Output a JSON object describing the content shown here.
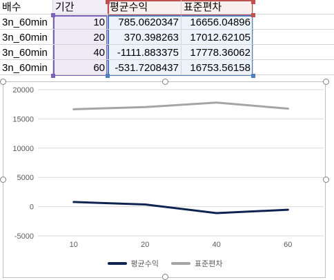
{
  "table": {
    "headers": [
      "배수",
      "기간",
      "평균수익",
      "표준편차"
    ],
    "rows": [
      [
        "3n_60min",
        "10",
        "785.0620347",
        "16656.04896"
      ],
      [
        "3n_60min",
        "20",
        "370.398263",
        "17012.62105"
      ],
      [
        "3n_60min",
        "40",
        "-1111.883375",
        "17778.36062"
      ],
      [
        "3n_60min",
        "60",
        "-531.7208437",
        "16753.56158"
      ]
    ]
  },
  "colors": {
    "avg_return": "#0e2350",
    "std_dev": "#a5a5a5",
    "range_purple": "#7a61b8",
    "range_red": "#c0504d",
    "range_blue": "#4f7fc0"
  },
  "chart_data": {
    "type": "line",
    "categories": [
      "10",
      "20",
      "40",
      "60"
    ],
    "series": [
      {
        "name": "평균수익",
        "values": [
          785.0620347,
          370.398263,
          -1111.883375,
          -531.7208437
        ]
      },
      {
        "name": "표준편차",
        "values": [
          16656.04896,
          17012.62105,
          17778.36062,
          16753.56158
        ]
      }
    ],
    "ylim": [
      -5000,
      20000
    ],
    "yticks": [
      "20000",
      "15000",
      "10000",
      "5000",
      "0",
      "-5000"
    ],
    "grid": true,
    "legend_position": "bottom"
  }
}
